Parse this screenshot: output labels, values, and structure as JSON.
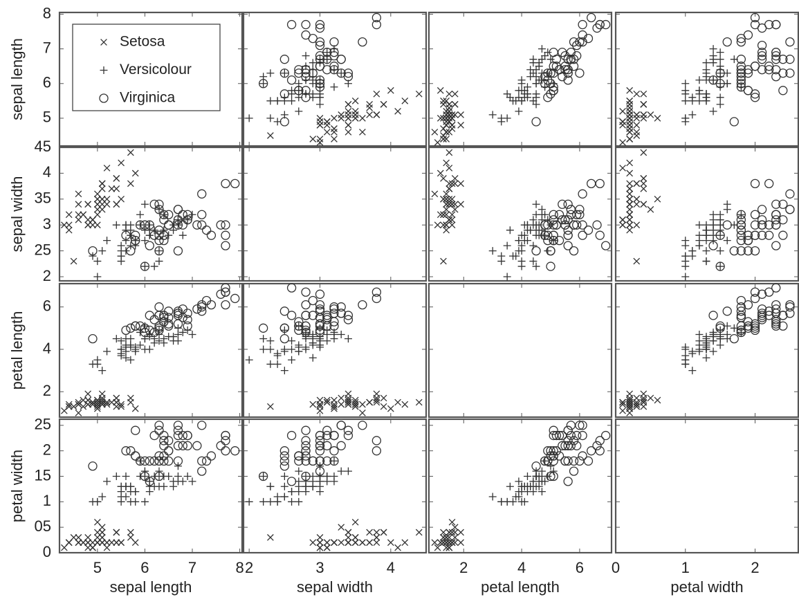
{
  "chart_data": {
    "type": "scatter-matrix",
    "legend": "upper left",
    "variables": [
      {
        "label": "sepal length",
        "lim": [
          4.2,
          8.05
        ],
        "xticks": [
          5,
          6,
          7,
          8
        ],
        "yticks": [
          5,
          6,
          7,
          8
        ]
      },
      {
        "label": "sepal width",
        "lim": [
          1.92,
          4.5
        ],
        "xticks": [
          2,
          3,
          4
        ],
        "yticks": [
          2,
          {
            "value": 2.5,
            "label": "25"
          },
          3,
          {
            "value": 3.5,
            "label": "35"
          },
          4,
          {
            "value": 4.5,
            "label": "45"
          }
        ]
      },
      {
        "label": "petal length",
        "lim": [
          0.8,
          7.1
        ],
        "xticks": [
          2,
          4,
          6
        ],
        "yticks": [
          2,
          4,
          6
        ]
      },
      {
        "label": "petal width",
        "lim": [
          0,
          2.62
        ],
        "xticks": [
          0,
          1,
          2
        ],
        "yticks": [
          0,
          {
            "value": 0.5,
            "label": "05"
          },
          1,
          {
            "value": 1.5,
            "label": "15"
          },
          2,
          {
            "value": 2.5,
            "label": "25"
          }
        ]
      }
    ],
    "series": [
      {
        "name": "Setosa",
        "marker": "x",
        "color": "#333333",
        "values": [
          [
            5.1,
            4.9,
            4.7,
            4.6,
            5.0,
            5.4,
            4.6,
            5.0,
            4.4,
            4.9,
            5.4,
            4.8,
            4.8,
            4.3,
            5.8,
            5.7,
            5.4,
            5.1,
            5.7,
            5.1,
            5.4,
            5.1,
            4.6,
            5.1,
            4.8,
            5.0,
            5.0,
            5.2,
            5.2,
            4.7,
            4.8,
            5.4,
            5.2,
            5.5,
            4.9,
            5.0,
            5.5,
            4.9,
            4.4,
            5.1,
            5.0,
            4.5,
            4.4,
            5.0,
            5.1,
            4.8,
            5.1,
            4.6,
            5.3,
            5.0
          ],
          [
            3.5,
            3.0,
            3.2,
            3.1,
            3.6,
            3.9,
            3.4,
            3.4,
            2.9,
            3.1,
            3.7,
            3.4,
            3.0,
            3.0,
            4.0,
            4.4,
            3.9,
            3.5,
            3.8,
            3.8,
            3.4,
            3.7,
            3.6,
            3.3,
            3.4,
            3.0,
            3.4,
            3.5,
            3.4,
            3.2,
            3.1,
            3.4,
            4.1,
            4.2,
            3.1,
            3.2,
            3.5,
            3.1,
            3.0,
            3.4,
            3.5,
            2.3,
            3.2,
            3.5,
            3.8,
            3.0,
            3.8,
            3.2,
            3.7,
            3.3
          ],
          [
            1.4,
            1.4,
            1.3,
            1.5,
            1.4,
            1.7,
            1.4,
            1.5,
            1.4,
            1.5,
            1.5,
            1.6,
            1.4,
            1.1,
            1.2,
            1.5,
            1.3,
            1.4,
            1.7,
            1.5,
            1.7,
            1.5,
            1.0,
            1.7,
            1.9,
            1.6,
            1.6,
            1.5,
            1.4,
            1.6,
            1.6,
            1.5,
            1.5,
            1.4,
            1.5,
            1.2,
            1.3,
            1.5,
            1.3,
            1.5,
            1.3,
            1.3,
            1.3,
            1.6,
            1.9,
            1.4,
            1.6,
            1.4,
            1.5,
            1.4
          ],
          [
            0.2,
            0.2,
            0.2,
            0.2,
            0.2,
            0.4,
            0.3,
            0.2,
            0.2,
            0.1,
            0.2,
            0.2,
            0.1,
            0.1,
            0.2,
            0.4,
            0.4,
            0.3,
            0.3,
            0.3,
            0.2,
            0.4,
            0.2,
            0.5,
            0.2,
            0.2,
            0.4,
            0.2,
            0.2,
            0.2,
            0.2,
            0.4,
            0.1,
            0.2,
            0.1,
            0.2,
            0.2,
            0.1,
            0.2,
            0.2,
            0.3,
            0.3,
            0.2,
            0.6,
            0.4,
            0.3,
            0.2,
            0.2,
            0.2,
            0.2
          ]
        ]
      },
      {
        "name": "Versicolour",
        "marker": "+",
        "color": "#333333",
        "values": [
          [
            7.0,
            6.4,
            6.9,
            5.5,
            6.5,
            5.7,
            6.3,
            4.9,
            6.6,
            5.2,
            5.0,
            5.9,
            6.0,
            6.1,
            5.6,
            6.7,
            5.6,
            5.8,
            6.2,
            5.6,
            5.9,
            6.1,
            6.3,
            6.1,
            6.4,
            6.6,
            6.8,
            6.7,
            6.0,
            5.7,
            5.5,
            5.5,
            5.8,
            6.0,
            5.4,
            6.0,
            6.7,
            6.3,
            5.6,
            5.5,
            5.5,
            6.1,
            5.8,
            5.0,
            5.6,
            5.7,
            5.7,
            6.2,
            5.1,
            5.7
          ],
          [
            3.2,
            3.2,
            3.1,
            2.3,
            2.8,
            2.8,
            3.3,
            2.4,
            2.9,
            2.7,
            2.0,
            3.0,
            2.2,
            2.9,
            2.9,
            3.1,
            3.0,
            2.7,
            2.2,
            2.5,
            3.2,
            2.8,
            2.5,
            2.8,
            2.9,
            3.0,
            2.8,
            3.0,
            2.9,
            2.6,
            2.4,
            2.4,
            2.7,
            2.7,
            3.0,
            3.4,
            3.1,
            2.3,
            3.0,
            2.5,
            2.6,
            3.0,
            2.6,
            2.3,
            2.7,
            3.0,
            2.9,
            2.9,
            2.5,
            2.8
          ],
          [
            4.7,
            4.5,
            4.9,
            4.0,
            4.6,
            4.5,
            4.7,
            3.3,
            4.6,
            3.9,
            3.5,
            4.2,
            4.0,
            4.7,
            3.6,
            4.4,
            4.5,
            4.1,
            4.5,
            3.9,
            4.8,
            4.0,
            4.9,
            4.7,
            4.3,
            4.4,
            4.8,
            5.0,
            4.5,
            3.5,
            3.8,
            3.7,
            3.9,
            5.1,
            4.5,
            4.5,
            4.7,
            4.4,
            4.1,
            4.0,
            4.4,
            4.6,
            4.0,
            3.3,
            4.2,
            4.2,
            4.2,
            4.3,
            3.0,
            4.1
          ],
          [
            1.4,
            1.5,
            1.5,
            1.3,
            1.5,
            1.3,
            1.6,
            1.0,
            1.3,
            1.4,
            1.0,
            1.5,
            1.0,
            1.4,
            1.3,
            1.4,
            1.5,
            1.0,
            1.5,
            1.1,
            1.8,
            1.3,
            1.5,
            1.2,
            1.3,
            1.4,
            1.4,
            1.7,
            1.5,
            1.0,
            1.1,
            1.0,
            1.2,
            1.6,
            1.5,
            1.6,
            1.5,
            1.3,
            1.3,
            1.3,
            1.2,
            1.4,
            1.2,
            1.0,
            1.3,
            1.2,
            1.3,
            1.3,
            1.1,
            1.3
          ]
        ]
      },
      {
        "name": "Virginica",
        "marker": "o",
        "color": "#333333",
        "values": [
          [
            6.3,
            5.8,
            7.1,
            6.3,
            6.5,
            7.6,
            4.9,
            7.3,
            6.7,
            7.2,
            6.5,
            6.4,
            6.8,
            5.7,
            5.8,
            6.4,
            6.5,
            7.7,
            7.7,
            6.0,
            6.9,
            5.6,
            7.7,
            6.3,
            6.7,
            7.2,
            6.2,
            6.1,
            6.4,
            7.2,
            7.4,
            7.9,
            6.4,
            6.3,
            6.1,
            7.7,
            6.3,
            6.4,
            6.0,
            6.9,
            6.7,
            6.9,
            5.8,
            6.8,
            6.7,
            6.7,
            6.3,
            6.5,
            6.2,
            5.9
          ],
          [
            3.3,
            2.7,
            3.0,
            2.9,
            3.0,
            3.0,
            2.5,
            2.9,
            2.5,
            3.6,
            3.2,
            2.7,
            3.0,
            2.5,
            2.8,
            3.2,
            3.0,
            3.8,
            2.6,
            2.2,
            3.2,
            2.8,
            2.8,
            2.7,
            3.3,
            3.2,
            2.8,
            3.0,
            2.8,
            3.0,
            2.8,
            3.8,
            2.8,
            2.8,
            2.6,
            3.0,
            3.4,
            3.1,
            3.0,
            3.1,
            3.1,
            3.1,
            2.7,
            3.2,
            3.3,
            3.0,
            2.5,
            3.0,
            3.4,
            3.0
          ],
          [
            6.0,
            5.1,
            5.9,
            5.6,
            5.8,
            6.6,
            4.5,
            6.3,
            5.8,
            6.1,
            5.1,
            5.3,
            5.5,
            5.0,
            5.1,
            5.3,
            5.5,
            6.7,
            6.9,
            5.0,
            5.7,
            4.9,
            6.7,
            4.9,
            5.7,
            6.0,
            4.8,
            4.9,
            5.6,
            5.8,
            6.1,
            6.4,
            5.6,
            5.1,
            5.6,
            6.1,
            5.6,
            5.5,
            4.8,
            5.4,
            5.6,
            5.1,
            5.1,
            5.9,
            5.7,
            5.2,
            5.0,
            5.2,
            5.4,
            5.1
          ],
          [
            2.5,
            1.9,
            2.1,
            1.8,
            2.2,
            2.1,
            1.7,
            1.8,
            1.8,
            2.5,
            2.0,
            1.9,
            2.1,
            2.0,
            2.4,
            2.3,
            1.8,
            2.2,
            2.3,
            1.5,
            2.3,
            2.0,
            2.0,
            1.8,
            2.1,
            1.8,
            1.8,
            1.8,
            2.1,
            1.6,
            1.9,
            2.0,
            2.2,
            1.5,
            1.4,
            2.3,
            2.4,
            1.8,
            1.8,
            2.1,
            2.4,
            2.3,
            1.9,
            2.3,
            2.5,
            2.3,
            1.9,
            2.0,
            2.3,
            1.8
          ]
        ]
      }
    ]
  }
}
